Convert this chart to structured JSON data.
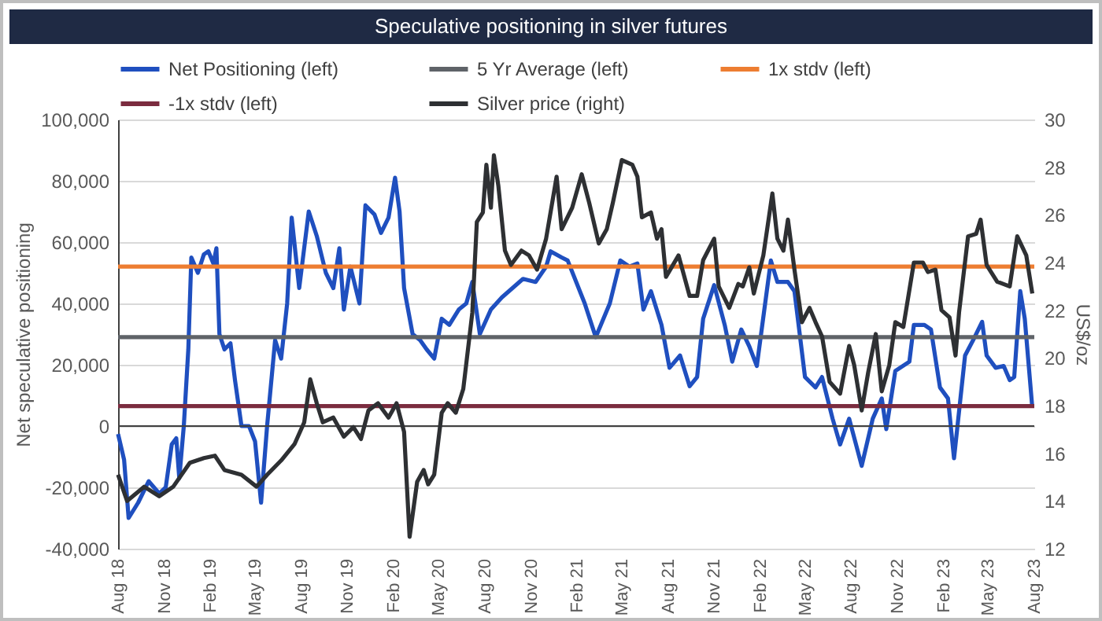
{
  "chart_data": {
    "type": "line",
    "title": "Speculative positioning in silver futures",
    "ylabel": "Net speculative positioning",
    "y2label": "US$/oz",
    "xlim": [
      "2018-08-01",
      "2023-08-01"
    ],
    "xticks": [
      {
        "value": "2018-08-01",
        "label": "Aug 18"
      },
      {
        "value": "2018-11-01",
        "label": "Nov 18"
      },
      {
        "value": "2019-02-01",
        "label": "Feb 19"
      },
      {
        "value": "2019-05-01",
        "label": "May 19"
      },
      {
        "value": "2019-08-01",
        "label": "Aug 19"
      },
      {
        "value": "2019-11-01",
        "label": "Nov 19"
      },
      {
        "value": "2020-02-01",
        "label": "Feb 20"
      },
      {
        "value": "2020-05-01",
        "label": "May 20"
      },
      {
        "value": "2020-08-01",
        "label": "Aug 20"
      },
      {
        "value": "2020-11-01",
        "label": "Nov 20"
      },
      {
        "value": "2021-02-01",
        "label": "Feb 21"
      },
      {
        "value": "2021-05-01",
        "label": "May 21"
      },
      {
        "value": "2021-08-01",
        "label": "Aug 21"
      },
      {
        "value": "2021-11-01",
        "label": "Nov 21"
      },
      {
        "value": "2022-02-01",
        "label": "Feb 22"
      },
      {
        "value": "2022-05-01",
        "label": "May 22"
      },
      {
        "value": "2022-08-01",
        "label": "Aug 22"
      },
      {
        "value": "2022-11-01",
        "label": "Nov 22"
      },
      {
        "value": "2023-02-01",
        "label": "Feb 23"
      },
      {
        "value": "2023-05-01",
        "label": "May 23"
      },
      {
        "value": "2023-08-01",
        "label": "Aug 23"
      }
    ],
    "ylim": [
      -40000,
      100000
    ],
    "yticks": [
      {
        "value": -40000,
        "label": "-40,000"
      },
      {
        "value": -20000,
        "label": "-20,000"
      },
      0,
      {
        "value": 20000,
        "label": "20,000"
      },
      {
        "value": 40000,
        "label": "40,000"
      },
      {
        "value": 60000,
        "label": "60,000"
      },
      {
        "value": 80000,
        "label": "80,000"
      },
      {
        "value": 100000,
        "label": "100,000"
      }
    ],
    "y2lim": [
      12,
      30
    ],
    "y2ticks": [
      12,
      14,
      16,
      18,
      20,
      22,
      24,
      26,
      28,
      30
    ],
    "grid": "y",
    "legend": "top",
    "ref_lines": [
      {
        "axis": "y",
        "value": 0,
        "color": "#404040"
      }
    ],
    "series": [
      {
        "name": "Net Positioning (left)",
        "color": "#1f4fbf",
        "x": [
          "2018-08-01",
          "2018-08-13",
          "2018-08-22",
          "2018-09-10",
          "2018-10-01",
          "2018-10-22",
          "2018-11-04",
          "2018-11-16",
          "2018-11-25",
          "2018-12-01",
          "2018-12-10",
          "2018-12-19",
          "2018-12-25",
          "2019-01-07",
          "2019-01-19",
          "2019-01-28",
          "2019-02-07",
          "2019-02-13",
          "2019-02-19",
          "2019-03-01",
          "2019-03-13",
          "2019-03-22",
          "2019-04-04",
          "2019-04-19",
          "2019-05-01",
          "2019-05-13",
          "2019-05-25",
          "2019-06-10",
          "2019-06-22",
          "2019-07-04",
          "2019-07-13",
          "2019-07-28",
          "2019-08-16",
          "2019-09-01",
          "2019-09-19",
          "2019-10-04",
          "2019-10-16",
          "2019-10-25",
          "2019-11-07",
          "2019-11-25",
          "2019-12-07",
          "2019-12-25",
          "2020-01-07",
          "2020-01-22",
          "2020-02-04",
          "2020-02-13",
          "2020-02-22",
          "2020-03-10",
          "2020-03-25",
          "2020-04-07",
          "2020-04-22",
          "2020-05-07",
          "2020-05-22",
          "2020-06-10",
          "2020-06-25",
          "2020-07-07",
          "2020-07-22",
          "2020-08-13",
          "2020-09-04",
          "2020-09-25",
          "2020-10-16",
          "2020-11-10",
          "2020-12-01",
          "2020-12-10",
          "2021-01-01",
          "2021-01-13",
          "2021-02-16",
          "2021-03-10",
          "2021-04-07",
          "2021-04-28",
          "2021-05-16",
          "2021-06-01",
          "2021-06-13",
          "2021-06-28",
          "2021-07-19",
          "2021-08-04",
          "2021-08-25",
          "2021-09-13",
          "2021-09-28",
          "2021-10-10",
          "2021-11-01",
          "2021-11-22",
          "2021-12-07",
          "2021-12-25",
          "2022-01-10",
          "2022-01-25",
          "2022-02-22",
          "2022-03-07",
          "2022-03-28",
          "2022-04-10",
          "2022-05-01",
          "2022-05-22",
          "2022-06-04",
          "2022-06-25",
          "2022-07-10",
          "2022-07-28",
          "2022-08-22",
          "2022-09-13",
          "2022-10-01",
          "2022-10-10",
          "2022-10-28",
          "2022-11-25",
          "2022-12-04",
          "2022-12-25",
          "2023-01-07",
          "2023-01-25",
          "2023-02-10",
          "2023-02-22",
          "2023-03-16",
          "2023-04-01",
          "2023-04-19",
          "2023-04-28",
          "2023-05-16",
          "2023-06-01",
          "2023-06-13",
          "2023-06-22",
          "2023-07-04",
          "2023-07-13",
          "2023-07-28"
        ],
        "values": [
          -2600,
          -11000,
          -30000,
          -25000,
          -18000,
          -22000,
          -20000,
          -6000,
          -4000,
          -17000,
          0,
          25000,
          55000,
          50000,
          56000,
          57000,
          53000,
          58000,
          30000,
          25000,
          27000,
          15000,
          0,
          0,
          -5000,
          -25000,
          0,
          28000,
          22000,
          40000,
          68000,
          45000,
          70000,
          62000,
          50000,
          45000,
          58000,
          38000,
          52000,
          40000,
          72000,
          69000,
          63000,
          68000,
          81000,
          70000,
          45000,
          30000,
          28000,
          25000,
          22000,
          35000,
          33000,
          38000,
          40000,
          47000,
          30000,
          38000,
          42000,
          45000,
          48000,
          47000,
          52000,
          57000,
          55000,
          54000,
          40000,
          29000,
          40000,
          54000,
          52000,
          53000,
          38000,
          44000,
          33000,
          19000,
          23000,
          13000,
          16000,
          35000,
          46000,
          33000,
          21000,
          31500,
          26000,
          19600,
          54000,
          47000,
          47000,
          44000,
          16000,
          12600,
          16000,
          2400,
          -6000,
          2400,
          -13000,
          2400,
          9000,
          -1000,
          18000,
          21000,
          33000,
          33000,
          31500,
          12600,
          9000,
          -10500,
          23000,
          28000,
          34000,
          23000,
          19000,
          19600,
          15000,
          16000,
          44000,
          35000,
          6000
        ]
      },
      {
        "name": "5 Yr Average (left)",
        "color": "#5f6368",
        "x": [
          "2018-08-01",
          "2023-08-01"
        ],
        "values": [
          29000,
          29000
        ]
      },
      {
        "name": "1x stdv (left)",
        "color": "#ed7d31",
        "x": [
          "2018-08-01",
          "2023-08-01"
        ],
        "values": [
          52000,
          52000
        ]
      },
      {
        "name": "-1x stdv (left)",
        "color": "#7b2c3f",
        "x": [
          "2018-08-01",
          "2023-08-01"
        ],
        "values": [
          6500,
          6500
        ]
      },
      {
        "name": "Silver price (right)",
        "color": "#2e3033",
        "axis": "y2",
        "x": [
          "2018-08-01",
          "2018-08-19",
          "2018-09-22",
          "2018-10-22",
          "2018-11-19",
          "2018-12-22",
          "2019-01-19",
          "2019-02-10",
          "2019-03-01",
          "2019-04-04",
          "2019-05-04",
          "2019-05-25",
          "2019-06-22",
          "2019-07-19",
          "2019-08-07",
          "2019-08-19",
          "2019-09-01",
          "2019-09-13",
          "2019-10-04",
          "2019-10-25",
          "2019-11-13",
          "2019-11-28",
          "2019-12-13",
          "2020-01-01",
          "2020-01-22",
          "2020-02-07",
          "2020-02-22",
          "2020-03-04",
          "2020-03-19",
          "2020-04-01",
          "2020-04-10",
          "2020-04-22",
          "2020-05-07",
          "2020-05-19",
          "2020-06-04",
          "2020-06-19",
          "2020-07-07",
          "2020-07-16",
          "2020-07-28",
          "2020-08-04",
          "2020-08-13",
          "2020-08-19",
          "2020-08-28",
          "2020-09-10",
          "2020-09-22",
          "2020-10-13",
          "2020-10-28",
          "2020-11-13",
          "2020-12-01",
          "2020-12-22",
          "2021-01-01",
          "2021-01-22",
          "2021-02-10",
          "2021-02-25",
          "2021-03-16",
          "2021-04-01",
          "2021-04-13",
          "2021-05-01",
          "2021-05-22",
          "2021-06-01",
          "2021-06-10",
          "2021-06-28",
          "2021-07-10",
          "2021-07-19",
          "2021-07-28",
          "2021-08-22",
          "2021-09-13",
          "2021-09-28",
          "2021-10-10",
          "2021-11-01",
          "2021-11-10",
          "2021-12-01",
          "2021-12-19",
          "2021-12-28",
          "2022-01-10",
          "2022-01-19",
          "2022-02-07",
          "2022-02-25",
          "2022-03-07",
          "2022-03-19",
          "2022-03-28",
          "2022-04-10",
          "2022-04-25",
          "2022-05-10",
          "2022-05-22",
          "2022-06-04",
          "2022-06-19",
          "2022-07-10",
          "2022-07-28",
          "2022-08-07",
          "2022-08-22",
          "2022-09-04",
          "2022-09-19",
          "2022-10-01",
          "2022-10-16",
          "2022-10-28",
          "2022-11-13",
          "2022-12-04",
          "2022-12-22",
          "2023-01-01",
          "2023-01-16",
          "2023-01-28",
          "2023-02-13",
          "2023-02-25",
          "2023-03-04",
          "2023-03-22",
          "2023-04-07",
          "2023-04-16",
          "2023-04-28",
          "2023-05-19",
          "2023-06-13",
          "2023-06-28",
          "2023-07-16",
          "2023-07-28"
        ],
        "values": [
          15.1,
          14.0,
          14.6,
          14.2,
          14.6,
          15.6,
          15.8,
          15.9,
          15.3,
          15.1,
          14.6,
          15.1,
          15.7,
          16.4,
          17.3,
          19.1,
          18.1,
          17.3,
          17.5,
          16.7,
          17.1,
          16.6,
          17.8,
          18.1,
          17.5,
          18.1,
          16.9,
          12.5,
          14.8,
          15.3,
          14.7,
          15.1,
          17.7,
          18.1,
          17.7,
          18.7,
          21.9,
          25.7,
          26.1,
          28.1,
          26.3,
          28.5,
          27.2,
          24.5,
          23.9,
          24.5,
          24.3,
          23.7,
          25.0,
          27.6,
          25.4,
          26.3,
          27.7,
          26.5,
          24.8,
          25.4,
          26.5,
          28.3,
          28.1,
          27.6,
          25.9,
          26.1,
          25.0,
          25.4,
          23.4,
          24.3,
          22.6,
          22.6,
          24.1,
          25.0,
          23.0,
          22.1,
          23.1,
          23.0,
          23.8,
          22.7,
          24.3,
          26.9,
          25.0,
          24.5,
          25.8,
          23.7,
          21.5,
          22.1,
          21.5,
          20.9,
          19.0,
          18.5,
          20.5,
          19.7,
          17.8,
          19.4,
          21.0,
          18.6,
          19.7,
          21.5,
          21.3,
          24.0,
          24.0,
          23.6,
          23.7,
          22.0,
          21.7,
          20.1,
          21.9,
          25.1,
          25.2,
          25.8,
          23.9,
          23.2,
          23.0,
          25.1,
          24.3,
          22.7
        ]
      }
    ]
  }
}
